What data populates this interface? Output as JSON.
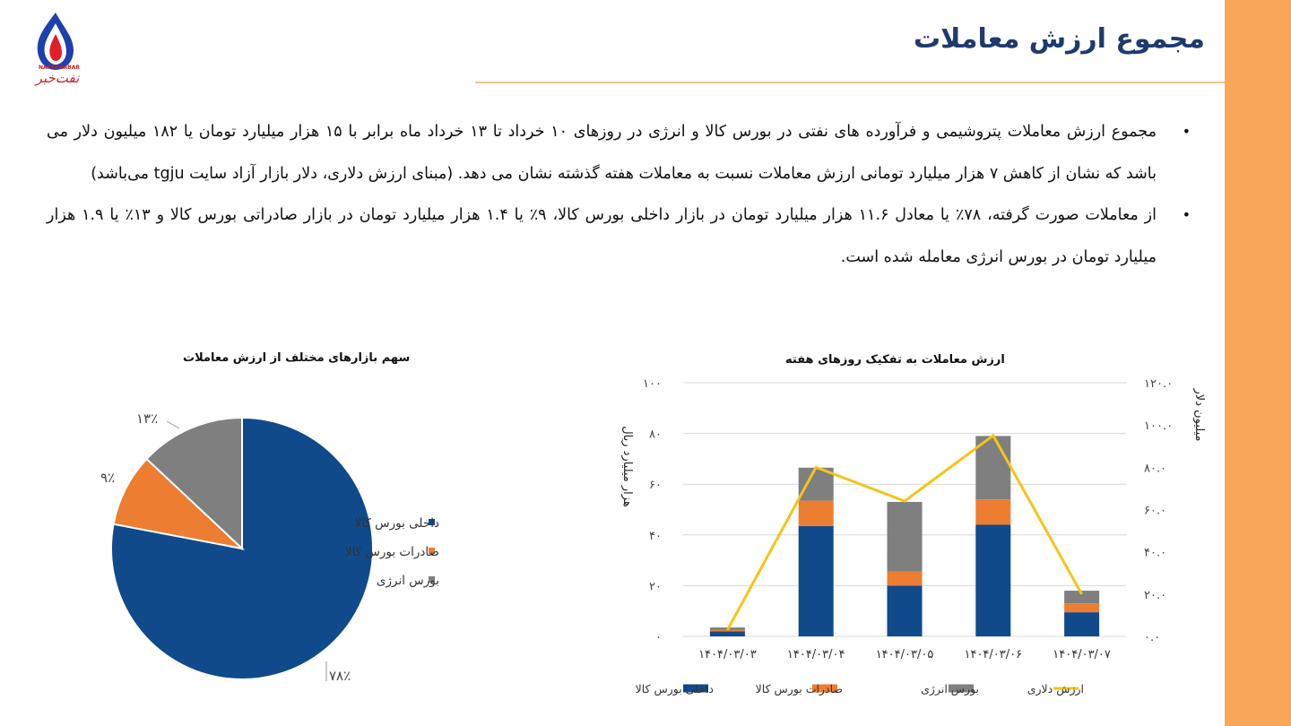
{
  "header": {
    "title": "مجموع ارزش معاملات",
    "logo_text": "نفت‌خبر",
    "logo_small": "NAFTKHABAR"
  },
  "colors": {
    "accent_band": "#f9a65a",
    "title": "#1f3a6e",
    "domestic": "#114a8b",
    "export": "#ed7d31",
    "energy": "#7f7f7f",
    "dollar_line": "#f5c518"
  },
  "bullets": [
    "مجموع ارزش معاملات پتروشیمی و فرآورده های نفتی در بورس کالا و انرژی در روزهای ۱۰ خرداد تا ۱۳ خرداد ماه برابر با ۱۵ هزار میلیارد تومان یا ۱۸۲ میلیون دلار می باشد که نشان از کاهش ۷ هزار میلیارد تومانی ارزش معاملات نسبت به معاملات هفته گذشته نشان می دهد. (مبنای ارزش دلاری، دلار بازار آزاد سایت tgju می‌باشد)",
    "از معاملات صورت گرفته، ۷۸٪ یا معادل ۱۱.۶ هزار میلیارد تومان در بازار داخلی بورس کالا، ۹٪  یا ۱.۴ هزار میلیارد تومان در بازار صادراتی بورس کالا و ۱۳٪ یا ۱.۹ هزار میلیارد تومان در بورس انرژی معامله شده است."
  ],
  "chart_data": [
    {
      "type": "bar",
      "stacked": true,
      "title": "ارزش معاملات به تفکیک روزهای هفته",
      "ylabel": "هزار میلیارد ریال",
      "y2label": "میلیون دلار",
      "categories": [
        "۱۴۰۴/۰۳/۰۳",
        "۱۴۰۴/۰۳/۰۴",
        "۱۴۰۴/۰۳/۰۵",
        "۱۴۰۴/۰۳/۰۶",
        "۱۴۰۴/۰۳/۰۷"
      ],
      "ylim": [
        0,
        100
      ],
      "y2lim": [
        0,
        120
      ],
      "yticks": [
        "۰",
        "۲۰",
        "۴۰",
        "۶۰",
        "۸۰",
        "۱۰۰"
      ],
      "y2ticks": [
        "۰.۰",
        "۲۰.۰",
        "۴۰.۰",
        "۶۰.۰",
        "۸۰.۰",
        "۱۰۰.۰",
        "۱۲۰.۰"
      ],
      "series": [
        {
          "name": "داخلی بورس کالا",
          "values": [
            2,
            43.5,
            20,
            44,
            9.5
          ]
        },
        {
          "name": "صادرات بورس کالا",
          "values": [
            0.5,
            10,
            5.5,
            10,
            3.5
          ]
        },
        {
          "name": "بورس انرژی",
          "values": [
            1,
            13,
            27.5,
            25,
            5
          ]
        }
      ],
      "line_series": {
        "name": "ارزش دلاری",
        "axis": "right",
        "values": [
          3,
          80,
          64,
          95,
          20
        ]
      },
      "grid": true,
      "legend": "bottom"
    },
    {
      "type": "pie",
      "title": "سهم بازارهای مختلف از ارزش معاملات",
      "labels": [
        "داخلی بورس کالا",
        "صادرات بورس کالا",
        "بورس انرژی"
      ],
      "values": [
        78,
        9,
        13
      ],
      "data_labels": [
        "۷۸٪",
        "۹٪",
        "۱۳٪"
      ],
      "legend": "right"
    }
  ]
}
